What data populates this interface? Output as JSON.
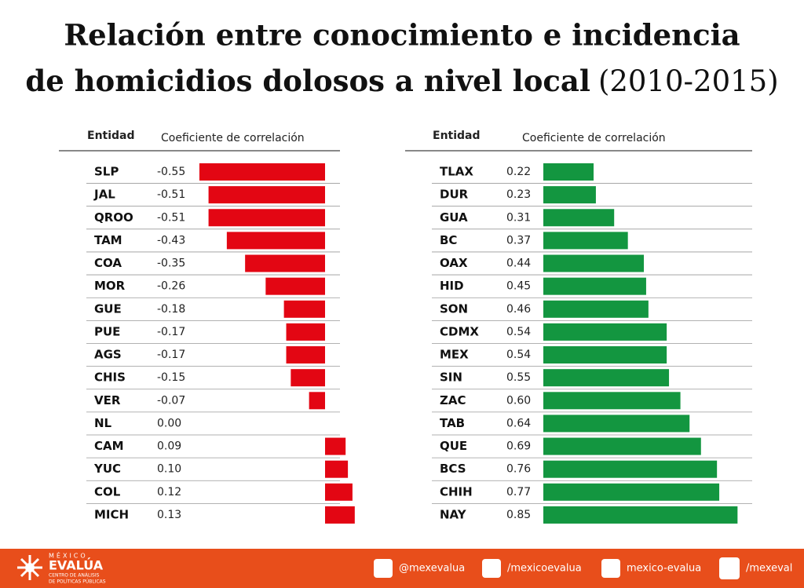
{
  "title_lines": [
    "Relación entre conocimiento e incidencia",
    "de homicidios dolosos a nivel local"
  ],
  "period": "(2010-2015)",
  "chart_data": [
    {
      "type": "bar",
      "color": "#e30613",
      "category_header": "Entidad",
      "value_header": "Coeficiente de correlación",
      "categories": [
        "SLP",
        "JAL",
        "QROO",
        "TAM",
        "COA",
        "MOR",
        "GUE",
        "PUE",
        "AGS",
        "CHIS",
        "VER",
        "NL",
        "CAM",
        "YUC",
        "COL",
        "MICH"
      ],
      "values": [
        -0.55,
        -0.51,
        -0.51,
        -0.43,
        -0.35,
        -0.26,
        -0.18,
        -0.17,
        -0.17,
        -0.15,
        -0.07,
        0,
        0.09,
        0.1,
        0.12,
        0.13
      ],
      "value_labels": [
        "-0.55",
        "-0.51",
        "-0.51",
        "-0.43",
        "-0.35",
        "-0.26",
        "-0.18",
        "-0.17",
        "-0.17",
        "-0.15",
        "-0.07",
        "0.00",
        "0.09",
        "0.10",
        "0.12",
        "0.13"
      ]
    },
    {
      "type": "bar",
      "color": "#139640",
      "category_header": "Entidad",
      "value_header": "Coeficiente de correlación",
      "categories": [
        "TLAX",
        "DUR",
        "GUA",
        "BC",
        "OAX",
        "HID",
        "SON",
        "CDMX",
        "MEX",
        "SIN",
        "ZAC",
        "TAB",
        "QUE",
        "BCS",
        "CHIH",
        "NAY"
      ],
      "values": [
        0.22,
        0.23,
        0.31,
        0.37,
        0.44,
        0.45,
        0.46,
        0.54,
        0.54,
        0.55,
        0.6,
        0.64,
        0.69,
        0.76,
        0.77,
        0.85
      ],
      "value_labels": [
        "0.22",
        "0.23",
        "0.31",
        "0.37",
        "0.44",
        "0.45",
        "0.46",
        "0.54",
        "0.54",
        "0.55",
        "0.60",
        "0.64",
        "0.69",
        "0.76",
        "0.77",
        "0.85"
      ]
    }
  ],
  "footer": {
    "brand": [
      "MÉXICO",
      "EVALÚA",
      "CENTRO DE ANÁLISIS",
      "DE POLÍTICAS PÚBLICAS"
    ],
    "social": [
      "@mexevalua",
      "/mexicoevalua",
      "mexico-evalua",
      "/mexeval"
    ]
  }
}
